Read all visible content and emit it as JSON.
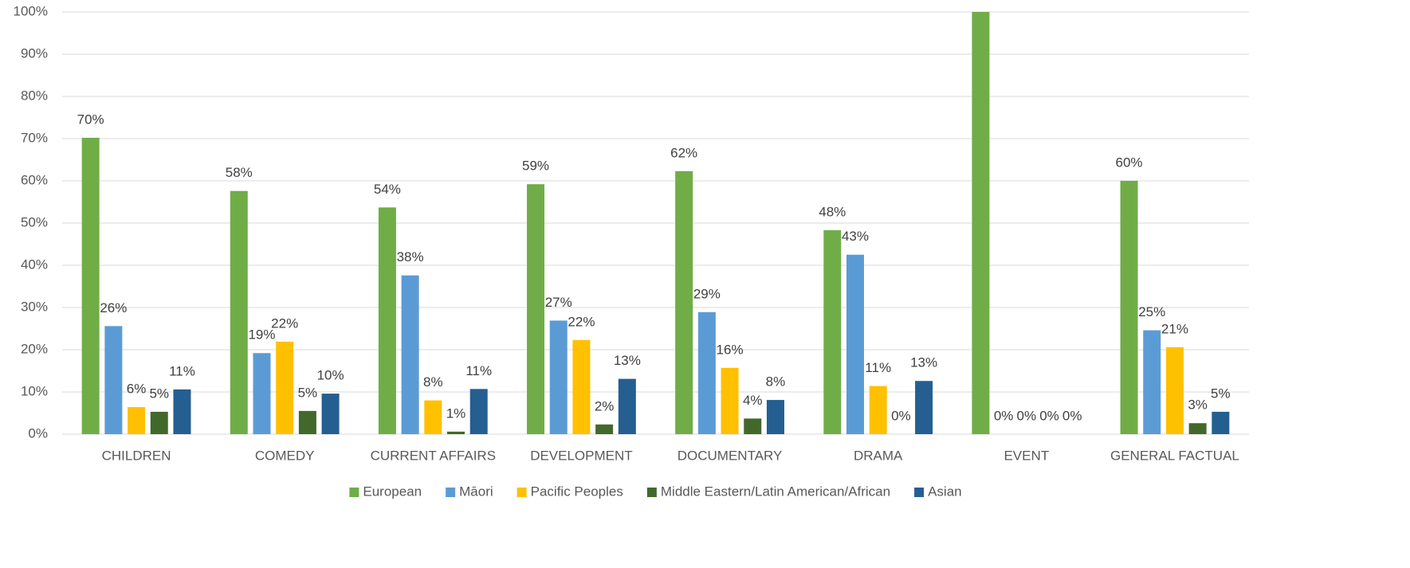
{
  "chart_data": {
    "type": "bar",
    "categories": [
      "CHILDREN",
      "COMEDY",
      "CURRENT AFFAIRS",
      "DEVELOPMENT",
      "DOCUMENTARY",
      "DRAMA",
      "EVENT",
      "GENERAL FACTUAL"
    ],
    "series": [
      {
        "name": "European",
        "color": "#70ad47",
        "values": [
          70.2,
          57.6,
          53.7,
          59.2,
          62.3,
          48.3,
          100,
          60.0
        ],
        "value_labels": [
          "70%",
          "58%",
          "54%",
          "59%",
          "62%",
          "48%",
          null,
          "60%"
        ]
      },
      {
        "name": "Māori",
        "color": "#5b9bd5",
        "values": [
          25.6,
          19.2,
          37.6,
          26.9,
          28.9,
          42.5,
          0,
          24.6
        ],
        "value_labels": [
          "26%",
          "19%",
          "38%",
          "27%",
          "29%",
          "43%",
          "0%",
          "25%"
        ]
      },
      {
        "name": "Pacific Peoples",
        "color": "#ffc000",
        "values": [
          6.4,
          21.9,
          8.0,
          22.3,
          15.7,
          11.4,
          0,
          20.6
        ],
        "value_labels": [
          "6%",
          "22%",
          "8%",
          "22%",
          "16%",
          "11%",
          "0%",
          "21%"
        ]
      },
      {
        "name": "Middle Eastern/Latin American/African",
        "color": "#43682b",
        "values": [
          5.3,
          5.5,
          0.6,
          2.3,
          3.7,
          0,
          0,
          2.6
        ],
        "value_labels": [
          "5%",
          "5%",
          "1%",
          "2%",
          "4%",
          "0%",
          "0%",
          "3%"
        ]
      },
      {
        "name": "Asian",
        "color": "#255e91",
        "values": [
          10.6,
          9.6,
          10.7,
          13.1,
          8.1,
          12.6,
          0,
          5.3
        ],
        "value_labels": [
          "11%",
          "10%",
          "11%",
          "13%",
          "8%",
          "13%",
          "0%",
          "5%"
        ]
      }
    ],
    "ylim": [
      0,
      100
    ],
    "yticks": [
      {
        "value": 0,
        "label": "0%"
      },
      {
        "value": 10,
        "label": "10%"
      },
      {
        "value": 20,
        "label": "20%"
      },
      {
        "value": 30,
        "label": "30%"
      },
      {
        "value": 40,
        "label": "40%"
      },
      {
        "value": 50,
        "label": "50%"
      },
      {
        "value": 60,
        "label": "60%"
      },
      {
        "value": 70,
        "label": "70%"
      },
      {
        "value": 80,
        "label": "80%"
      },
      {
        "value": 90,
        "label": "90%"
      },
      {
        "value": 100,
        "label": "100%"
      }
    ],
    "grid": true,
    "legend": "bottom"
  }
}
